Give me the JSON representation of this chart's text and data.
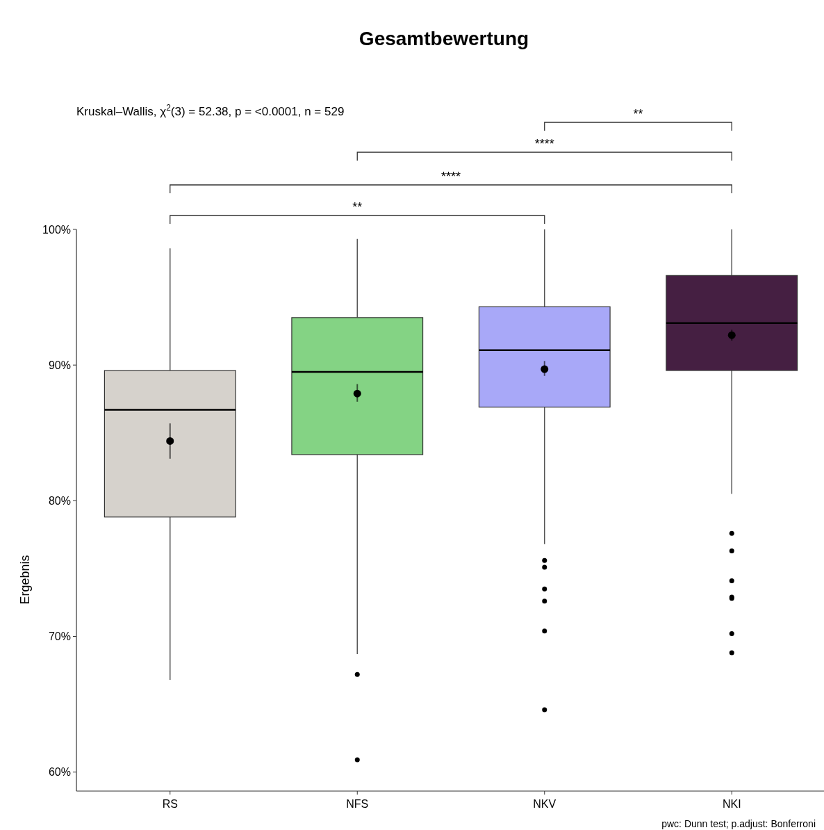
{
  "chart_data": {
    "type": "box",
    "title": "Gesamtbewertung",
    "subtitle": "Kruskal–Wallis, χ$^{2}$(3) = 52.38, p = <0.0001, n = 529",
    "ylabel": "Ergebnis",
    "categories": [
      "RS",
      "NFS",
      "NKV",
      "NKI"
    ],
    "colors": [
      "#d6d2cc",
      "#84d384",
      "#a8a8f8",
      "#451f42"
    ],
    "boxes": [
      {
        "low": 66.8,
        "q1": 78.8,
        "median": 86.7,
        "q3": 89.6,
        "high": 98.6
      },
      {
        "low": 68.7,
        "q1": 83.4,
        "median": 89.5,
        "q3": 93.5,
        "high": 99.3,
        "outliers": [
          67.2,
          60.9
        ]
      },
      {
        "low": 76.8,
        "q1": 86.9,
        "median": 91.1,
        "q3": 94.3,
        "high": 100,
        "outliers": [
          75.6,
          75.1,
          73.5,
          72.6,
          70.4,
          64.6
        ]
      },
      {
        "low": 80.5,
        "q1": 89.6,
        "median": 93.1,
        "q3": 96.6,
        "high": 100,
        "outliers": [
          77.6,
          76.3,
          74.1,
          72.9,
          72.8,
          70.2,
          68.8
        ]
      }
    ],
    "series": [
      {
        "type": "scatter",
        "color": "#000000",
        "values": [
          84.4,
          87.9,
          89.7,
          92.2
        ],
        "errors": [
          [
            83.1,
            85.7
          ],
          [
            87.3,
            88.6
          ],
          [
            89.2,
            90.3
          ],
          [
            91.8,
            92.6
          ]
        ]
      }
    ],
    "ylim": [
      58.6,
      100
    ],
    "yticks": [
      {
        "value": 60,
        "label": "60%"
      },
      {
        "value": 70,
        "label": "70%"
      },
      {
        "value": 80,
        "label": "80%"
      },
      {
        "value": 90,
        "label": "90%"
      },
      {
        "value": 100,
        "label": "100%"
      }
    ],
    "grid": false,
    "marker": "circle",
    "annotations": [
      "**",
      "****",
      "****",
      "**",
      "pwc: Dunn test; p.adjust: Bonferroni"
    ]
  }
}
